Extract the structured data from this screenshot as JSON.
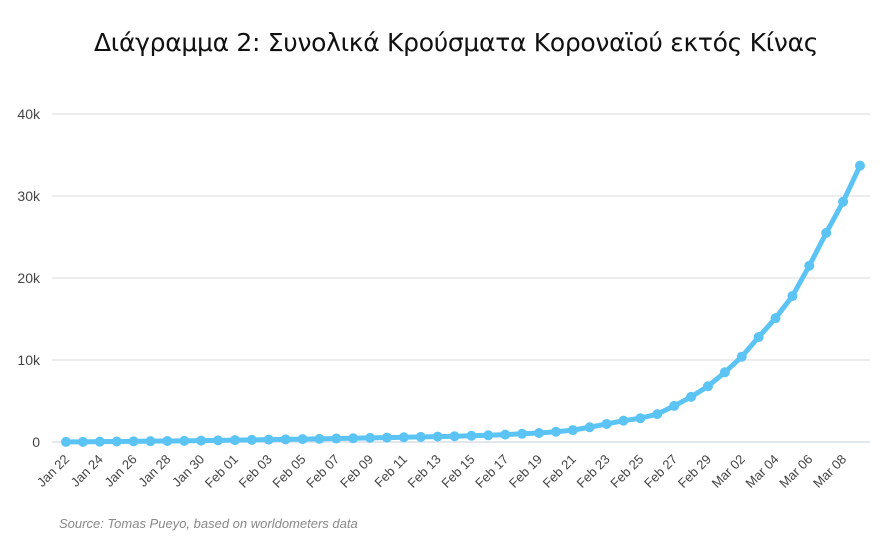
{
  "chart_data": {
    "type": "line",
    "title": "Διάγραμμα 2: Συνολικά Κρούσματα Κοροναϊού εκτός Κίνας",
    "source": "Source: Tomas Pueyo, based on worldometers data",
    "xlabel": "",
    "ylabel": "",
    "ylim": [
      0,
      40000
    ],
    "y_ticks": [
      {
        "value": 0,
        "label": "0"
      },
      {
        "value": 10000,
        "label": "10k"
      },
      {
        "value": 20000,
        "label": "20k"
      },
      {
        "value": 30000,
        "label": "30k"
      },
      {
        "value": 40000,
        "label": "40k"
      }
    ],
    "grid": true,
    "color": "#5bc4f5",
    "x_tick_labels": [
      "Jan 22",
      "Jan 24",
      "Jan 26",
      "Jan 28",
      "Jan 30",
      "Feb 01",
      "Feb 03",
      "Feb 05",
      "Feb 07",
      "Feb 09",
      "Feb 11",
      "Feb 13",
      "Feb 15",
      "Feb 17",
      "Feb 19",
      "Feb 21",
      "Feb 23",
      "Feb 25",
      "Feb 27",
      "Feb 29",
      "Mar 02",
      "Mar 04",
      "Mar 06",
      "Mar 08"
    ],
    "x": [
      "Jan 22",
      "Jan 23",
      "Jan 24",
      "Jan 25",
      "Jan 26",
      "Jan 27",
      "Jan 28",
      "Jan 29",
      "Jan 30",
      "Jan 31",
      "Feb 01",
      "Feb 02",
      "Feb 03",
      "Feb 04",
      "Feb 05",
      "Feb 06",
      "Feb 07",
      "Feb 08",
      "Feb 09",
      "Feb 10",
      "Feb 11",
      "Feb 12",
      "Feb 13",
      "Feb 14",
      "Feb 15",
      "Feb 16",
      "Feb 17",
      "Feb 18",
      "Feb 19",
      "Feb 20",
      "Feb 21",
      "Feb 22",
      "Feb 23",
      "Feb 24",
      "Feb 25",
      "Feb 26",
      "Feb 27",
      "Feb 28",
      "Feb 29",
      "Mar 01",
      "Mar 02",
      "Mar 03",
      "Mar 04",
      "Mar 05",
      "Mar 06",
      "Mar 07",
      "Mar 08",
      "Mar 09"
    ],
    "values": [
      10,
      20,
      40,
      60,
      80,
      100,
      120,
      140,
      170,
      200,
      230,
      260,
      290,
      320,
      350,
      380,
      420,
      460,
      500,
      540,
      580,
      620,
      660,
      700,
      760,
      820,
      900,
      1000,
      1100,
      1250,
      1450,
      1800,
      2200,
      2600,
      2900,
      3400,
      4400,
      5500,
      6800,
      8500,
      10400,
      12800,
      15100,
      17800,
      21500,
      25500,
      29300,
      33700
    ]
  }
}
